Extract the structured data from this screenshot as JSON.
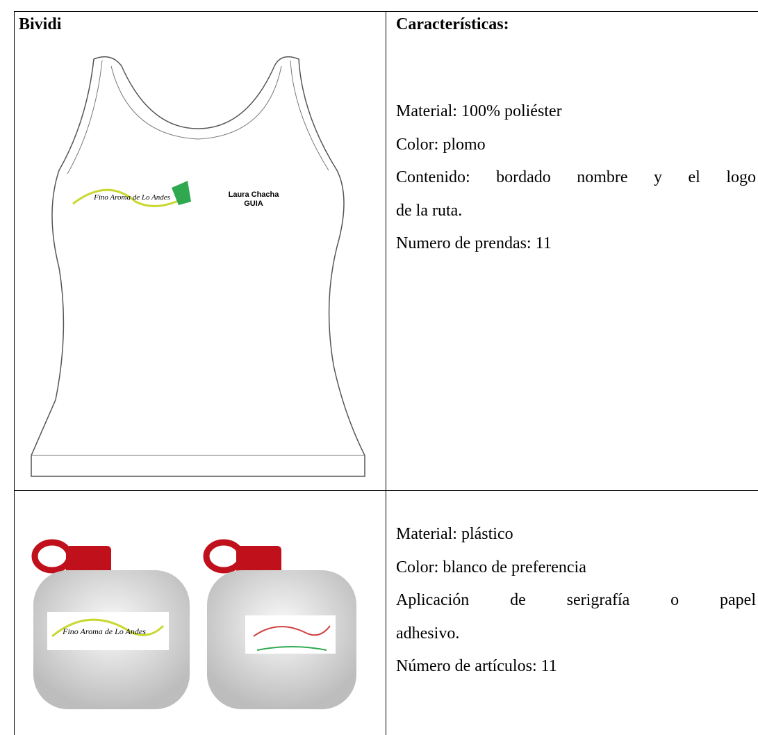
{
  "table": {
    "rows": [
      {
        "left": {
          "title": "Bividi",
          "name_label": "Laura Chacha",
          "role_label": "GUIA",
          "logo": "Fino Aroma de Lo Andes"
        },
        "right": {
          "title": "Características:",
          "lines": [
            "Material: 100% poliéster",
            "Color: plomo",
            "Contenido: bordado nombre y el logo",
            "de la ruta.",
            "Numero de prendas: 11"
          ]
        }
      },
      {
        "left": {
          "logo": "Fino Aroma de Lo Andes"
        },
        "right": {
          "lines": [
            "Material: plástico",
            "Color: blanco de preferencia",
            "Aplicación de serigrafía o papel",
            "adhesivo.",
            "Número de artículos: 11"
          ]
        }
      }
    ]
  }
}
